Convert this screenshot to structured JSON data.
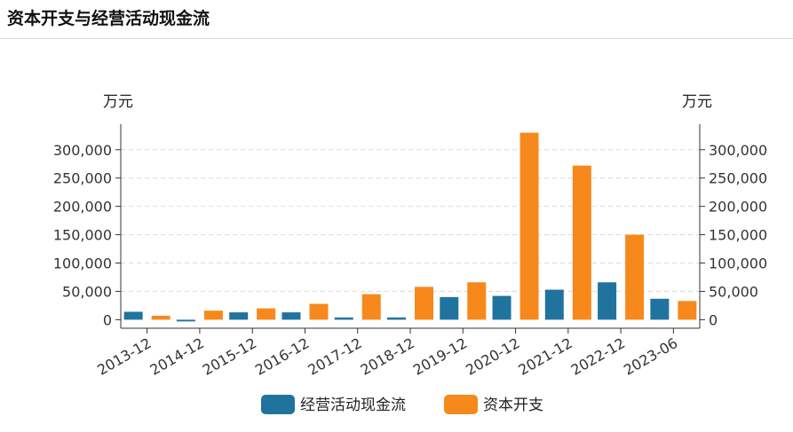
{
  "title": "资本开支与经营活动现金流",
  "chart_data": {
    "type": "bar",
    "categories": [
      "2013-12",
      "2014-12",
      "2015-12",
      "2016-12",
      "2017-12",
      "2018-12",
      "2019-12",
      "2020-12",
      "2021-12",
      "2022-12",
      "2023-06"
    ],
    "series": [
      {
        "name": "经营活动现金流",
        "color": "#21739f",
        "values": [
          14000,
          -3000,
          13000,
          13000,
          4000,
          4000,
          40000,
          42000,
          53000,
          66000,
          37000
        ]
      },
      {
        "name": "资本开支",
        "color": "#f7891c",
        "values": [
          7000,
          16000,
          20000,
          28000,
          45000,
          58000,
          66000,
          330000,
          272000,
          150000,
          33000
        ]
      }
    ],
    "y_unit_left": "万元",
    "y_unit_right": "万元",
    "ylim": [
      -15000,
      345000
    ],
    "yticks": [
      0,
      50000,
      100000,
      150000,
      200000,
      250000,
      300000
    ],
    "ytick_labels": [
      "0",
      "50,000",
      "100,000",
      "150,000",
      "200,000",
      "250,000",
      "300,000"
    ],
    "grid": true,
    "legend": "bottom-center"
  }
}
